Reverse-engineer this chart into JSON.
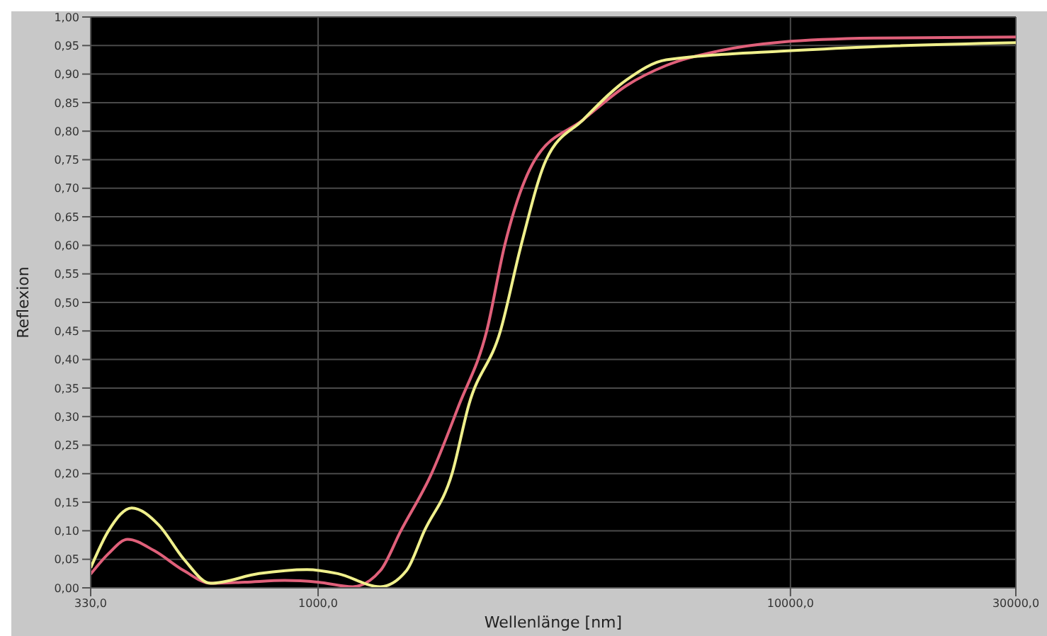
{
  "chart_data": {
    "type": "line",
    "xlabel": "Wellenlänge [nm]",
    "ylabel": "Reflexion",
    "log": "x",
    "grid": true,
    "line_style": "solid",
    "marker": "none",
    "xlim": [
      330,
      30000
    ],
    "xticks": [
      {
        "value": 330,
        "label": "330,0"
      },
      {
        "value": 1000,
        "label": "1000,0"
      },
      {
        "value": 10000,
        "label": "10000,0"
      },
      {
        "value": 30000,
        "label": "30000,0"
      }
    ],
    "ylim": [
      0,
      1
    ],
    "yticks": [
      {
        "value": 0,
        "label": "0,00"
      },
      {
        "value": 0.05,
        "label": "0,05"
      },
      {
        "value": 0.1,
        "label": "0,10"
      },
      {
        "value": 0.15,
        "label": "0,15"
      },
      {
        "value": 0.2,
        "label": "0,20"
      },
      {
        "value": 0.25,
        "label": "0,25"
      },
      {
        "value": 0.3,
        "label": "0,30"
      },
      {
        "value": 0.35,
        "label": "0,35"
      },
      {
        "value": 0.4,
        "label": "0,40"
      },
      {
        "value": 0.45,
        "label": "0,45"
      },
      {
        "value": 0.5,
        "label": "0,50"
      },
      {
        "value": 0.55,
        "label": "0,55"
      },
      {
        "value": 0.6,
        "label": "0,60"
      },
      {
        "value": 0.65,
        "label": "0,65"
      },
      {
        "value": 0.7,
        "label": "0,70"
      },
      {
        "value": 0.75,
        "label": "0,75"
      },
      {
        "value": 0.8,
        "label": "0,80"
      },
      {
        "value": 0.85,
        "label": "0,85"
      },
      {
        "value": 0.9,
        "label": "0,90"
      },
      {
        "value": 0.95,
        "label": "0,95"
      },
      {
        "value": 1,
        "label": "1,00"
      }
    ],
    "series": [
      {
        "color": "#e0607a",
        "x": [
          330,
          360,
          395,
          450,
          520,
          592,
          700,
          850,
          1000,
          1184,
          1354,
          1497,
          1738,
          1987,
          2275,
          2483,
          2878,
          3640,
          4500,
          5455,
          7000,
          9550,
          15000,
          30000
        ],
        "values": [
          0.024,
          0.06,
          0.085,
          0.065,
          0.03,
          0.008,
          0.01,
          0.013,
          0.01,
          0.002,
          0.03,
          0.1,
          0.2,
          0.32,
          0.45,
          0.6,
          0.75,
          0.82,
          0.88,
          0.915,
          0.94,
          0.956,
          0.963,
          0.965
        ]
      },
      {
        "color": "#f0f08c",
        "x": [
          330,
          360,
          403,
          460,
          520,
          592,
          750,
          947,
          1100,
          1354,
          1538,
          1679,
          1921,
          2084,
          2432,
          2690,
          3040,
          3640,
          4500,
          5455,
          9550,
          15000,
          30000
        ],
        "values": [
          0.035,
          0.1,
          0.14,
          0.11,
          0.05,
          0.008,
          0.025,
          0.032,
          0.025,
          0.002,
          0.03,
          0.1,
          0.2,
          0.32,
          0.45,
          0.6,
          0.75,
          0.82,
          0.89,
          0.925,
          0.94,
          0.948,
          0.955
        ]
      }
    ]
  }
}
